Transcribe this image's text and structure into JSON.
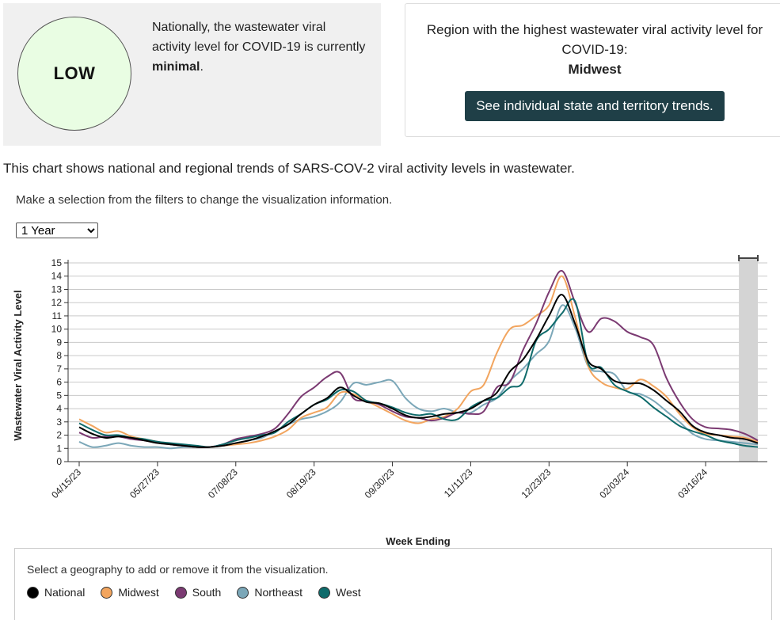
{
  "national_summary": {
    "level_badge": "LOW",
    "text_before": "Nationally, the wastewater viral activity level for COVID-19 is currently ",
    "level_word": "minimal",
    "text_after": "."
  },
  "region_card": {
    "heading": "Region with the highest wastewater viral activity level for COVID-19:",
    "region": "Midwest",
    "button_label": "See individual state and territory trends."
  },
  "chart_description": "This chart shows national and regional trends of SARS-COV-2 viral activity levels in wastewater.",
  "filter_instructions": "Make a selection from the filters to change the visualization information.",
  "time_range": {
    "selected": "1 Year"
  },
  "legend": {
    "instructions": "Select a geography to add or remove it from the visualization.",
    "items": [
      {
        "label": "National",
        "color": "#000000"
      },
      {
        "label": "Midwest",
        "color": "#f2a55f"
      },
      {
        "label": "South",
        "color": "#7b3a72"
      },
      {
        "label": "Northeast",
        "color": "#7ba7b8"
      },
      {
        "label": "West",
        "color": "#0f6b6b"
      }
    ]
  },
  "chart_data": {
    "type": "line",
    "xlabel": "Week Ending",
    "ylabel": "Wastewater Viral Activity Level",
    "ylim": [
      0,
      15
    ],
    "yticks": [
      0,
      1,
      2,
      3,
      4,
      5,
      6,
      7,
      8,
      9,
      10,
      11,
      12,
      13,
      14,
      15
    ],
    "x_tick_labels": [
      "04/15/23",
      "05/27/23",
      "07/08/23",
      "08/19/23",
      "09/30/23",
      "11/11/23",
      "12/23/23",
      "02/03/24",
      "03/16/24"
    ],
    "grid": true,
    "provisional_shading": "final 2 weeks",
    "x": [
      "04/15/23",
      "04/22/23",
      "04/29/23",
      "05/06/23",
      "05/13/23",
      "05/20/23",
      "05/27/23",
      "06/03/23",
      "06/10/23",
      "06/17/23",
      "06/24/23",
      "07/01/23",
      "07/08/23",
      "07/15/23",
      "07/22/23",
      "07/29/23",
      "08/05/23",
      "08/12/23",
      "08/19/23",
      "08/26/23",
      "09/02/23",
      "09/09/23",
      "09/16/23",
      "09/23/23",
      "09/30/23",
      "10/07/23",
      "10/14/23",
      "10/21/23",
      "10/28/23",
      "11/04/23",
      "11/11/23",
      "11/18/23",
      "11/25/23",
      "12/02/23",
      "12/09/23",
      "12/16/23",
      "12/23/23",
      "12/30/23",
      "01/06/24",
      "01/13/24",
      "01/20/24",
      "01/27/24",
      "02/03/24",
      "02/10/24",
      "02/17/24",
      "02/24/24",
      "03/02/24",
      "03/09/24",
      "03/16/24",
      "03/23/24",
      "03/30/24",
      "04/06/24",
      "04/13/24"
    ],
    "series": [
      {
        "name": "National",
        "color": "#000000",
        "values": [
          2.6,
          2.1,
          1.8,
          1.9,
          1.8,
          1.6,
          1.4,
          1.3,
          1.2,
          1.1,
          1.1,
          1.2,
          1.4,
          1.6,
          1.9,
          2.3,
          2.8,
          3.6,
          4.3,
          4.8,
          5.6,
          5.0,
          4.5,
          4.4,
          4.0,
          3.5,
          3.3,
          3.4,
          3.6,
          3.7,
          4.0,
          4.6,
          5.2,
          6.8,
          7.7,
          9.2,
          11.0,
          12.6,
          10.4,
          7.6,
          7.0,
          6.1,
          5.9,
          5.9,
          5.4,
          4.6,
          3.8,
          2.7,
          2.2,
          2.0,
          1.8,
          1.7,
          1.4
        ]
      },
      {
        "name": "Midwest",
        "color": "#f2a55f",
        "values": [
          3.2,
          2.7,
          2.2,
          2.3,
          1.9,
          1.7,
          1.5,
          1.3,
          1.2,
          1.1,
          1.1,
          1.2,
          1.3,
          1.4,
          1.6,
          1.9,
          2.4,
          3.3,
          3.7,
          4.1,
          5.2,
          5.1,
          4.6,
          4.1,
          3.6,
          3.1,
          2.9,
          3.2,
          3.4,
          4.0,
          5.3,
          5.8,
          8.2,
          10.0,
          10.3,
          11.0,
          11.8,
          14.0,
          10.9,
          7.2,
          6.0,
          5.6,
          5.5,
          6.2,
          5.7,
          4.9,
          3.6,
          2.6,
          2.1,
          2.0,
          1.9,
          1.8,
          1.5
        ]
      },
      {
        "name": "South",
        "color": "#7b3a72",
        "values": [
          2.2,
          1.8,
          1.9,
          1.9,
          1.7,
          1.6,
          1.5,
          1.3,
          1.2,
          1.1,
          1.1,
          1.3,
          1.7,
          1.9,
          2.1,
          2.5,
          3.6,
          4.9,
          5.6,
          6.4,
          6.7,
          4.8,
          4.6,
          4.3,
          3.8,
          3.4,
          3.3,
          3.1,
          3.3,
          3.7,
          3.6,
          3.8,
          5.6,
          6.0,
          8.4,
          10.4,
          12.8,
          14.4,
          12.0,
          9.8,
          10.8,
          10.6,
          9.8,
          9.4,
          8.8,
          6.3,
          4.5,
          3.2,
          2.6,
          2.5,
          2.4,
          2.1,
          1.6
        ]
      },
      {
        "name": "Northeast",
        "color": "#7ba7b8",
        "values": [
          1.5,
          1.1,
          1.2,
          1.4,
          1.2,
          1.1,
          1.1,
          1.0,
          1.1,
          1.1,
          1.1,
          1.2,
          1.4,
          1.6,
          1.8,
          2.3,
          2.8,
          3.2,
          3.4,
          3.8,
          4.5,
          5.9,
          5.8,
          6.0,
          6.1,
          4.8,
          4.0,
          3.8,
          4.0,
          3.7,
          3.7,
          4.3,
          4.8,
          6.1,
          7.0,
          8.1,
          9.1,
          11.8,
          10.1,
          7.2,
          6.8,
          6.6,
          5.3,
          5.1,
          4.6,
          3.8,
          3.0,
          2.1,
          1.7,
          1.6,
          1.5,
          1.4,
          1.3
        ]
      },
      {
        "name": "West",
        "color": "#0f6b6b",
        "values": [
          2.9,
          2.4,
          2.0,
          2.0,
          1.8,
          1.7,
          1.5,
          1.4,
          1.3,
          1.2,
          1.1,
          1.3,
          1.6,
          1.8,
          2.0,
          2.2,
          3.0,
          3.6,
          4.3,
          4.7,
          5.4,
          5.3,
          4.6,
          4.4,
          4.1,
          3.7,
          3.5,
          3.6,
          3.2,
          3.2,
          4.1,
          4.6,
          4.8,
          5.6,
          6.0,
          9.1,
          10.0,
          11.2,
          12.1,
          7.4,
          7.1,
          5.8,
          5.3,
          4.9,
          4.1,
          3.4,
          2.7,
          2.3,
          2.0,
          1.6,
          1.4,
          1.2,
          1.1
        ]
      }
    ]
  }
}
